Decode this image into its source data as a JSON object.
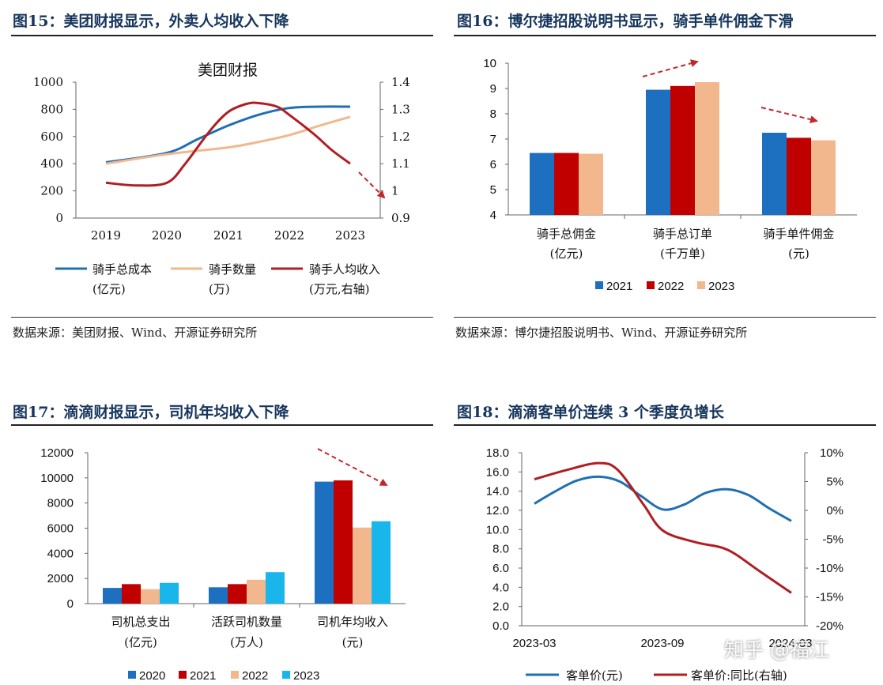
{
  "panels": [
    {
      "fig_title": "图15：美团财报显示，外卖人均收入下降",
      "source": "数据来源：美团财报、Wind、开源证券研究所"
    },
    {
      "fig_title": "图16：博尔捷招股说明书显示，骑手单件佣金下滑",
      "source": "数据来源：博尔捷招股说明书、Wind、开源证券研究所"
    },
    {
      "fig_title": "图17：滴滴财报显示，司机年均收入下降",
      "source": ""
    },
    {
      "fig_title": "图18：滴滴客单价连续 3 个季度负增长",
      "source": ""
    }
  ],
  "watermark": "知乎 @福江",
  "colors": {
    "title_blue": "#17365d",
    "blue": "#1f6fb4",
    "dark_red": "#b01e22",
    "peach": "#f3b78d",
    "bright_red": "#c00000",
    "cyan": "#19b6ec",
    "bar_blue": "#1d6fc0"
  },
  "chart_data": [
    {
      "type": "line",
      "title": "美团财报",
      "x": [
        "2019",
        "2020",
        "2021",
        "2022",
        "2023"
      ],
      "ylim": [
        0,
        1000
      ],
      "yticks": [
        0,
        200,
        400,
        600,
        800,
        1000
      ],
      "y2lim": [
        0.9,
        1.4
      ],
      "y2ticks": [
        "0.9",
        "1",
        "1.1",
        "1.2",
        "1.3",
        "1.4"
      ],
      "series": [
        {
          "name": "骑手总成本",
          "sub": "(亿元)",
          "axis": "left",
          "color": "#1f6fb4",
          "x": [
            2019,
            2020,
            2020.5,
            2021,
            2021.5,
            2022,
            2022.5,
            2023
          ],
          "values": [
            410,
            480,
            580,
            680,
            760,
            810,
            820,
            820
          ]
        },
        {
          "name": "骑手数量",
          "sub": "(万)",
          "axis": "left",
          "color": "#f3b78d",
          "x": [
            2019,
            2020,
            2021,
            2021.5,
            2022,
            2022.5,
            2023
          ],
          "values": [
            400,
            470,
            520,
            560,
            610,
            680,
            745
          ]
        },
        {
          "name": "骑手人均收入",
          "sub": "(万元,右轴)",
          "axis": "right",
          "color": "#b01e22",
          "x": [
            2019,
            2019.5,
            2020,
            2020.3,
            2020.7,
            2021,
            2021.3,
            2021.5,
            2021.8,
            2022,
            2022.4,
            2022.7,
            2023
          ],
          "values": [
            1.03,
            1.02,
            1.03,
            1.1,
            1.22,
            1.29,
            1.32,
            1.323,
            1.31,
            1.28,
            1.21,
            1.15,
            1.1
          ]
        }
      ]
    },
    {
      "type": "bar",
      "categories": [
        [
          "骑手总佣金",
          "(亿元)"
        ],
        [
          "骑手总订单",
          "(千万单)"
        ],
        [
          "骑手单件佣金",
          "(元)"
        ]
      ],
      "ylim": [
        4,
        10
      ],
      "yticks": [
        4,
        5,
        6,
        7,
        8,
        9,
        10
      ],
      "series": [
        {
          "name": "2021",
          "color": "#1d6fc0",
          "values": [
            6.45,
            8.95,
            7.25
          ]
        },
        {
          "name": "2022",
          "color": "#c00000",
          "values": [
            6.45,
            9.1,
            7.05
          ]
        },
        {
          "name": "2023",
          "color": "#f3b78d",
          "values": [
            6.42,
            9.25,
            6.95
          ]
        }
      ]
    },
    {
      "type": "bar",
      "categories": [
        [
          "司机总支出",
          "(亿元)"
        ],
        [
          "活跃司机数量",
          "(万人)"
        ],
        [
          "司机年均收入",
          "(元)"
        ]
      ],
      "ylim": [
        0,
        12000
      ],
      "yticks": [
        0,
        2000,
        4000,
        6000,
        8000,
        10000,
        12000
      ],
      "series": [
        {
          "name": "2020",
          "color": "#1d6fc0",
          "values": [
            1250,
            1300,
            9700
          ]
        },
        {
          "name": "2021",
          "color": "#c00000",
          "values": [
            1550,
            1550,
            9800
          ]
        },
        {
          "name": "2022",
          "color": "#f3b78d",
          "values": [
            1150,
            1900,
            6050
          ]
        },
        {
          "name": "2023",
          "color": "#19b6ec",
          "values": [
            1650,
            2500,
            6550
          ]
        }
      ]
    },
    {
      "type": "line",
      "x_labels": [
        "2023-03",
        "2023-09",
        "2024-03"
      ],
      "ylim": [
        0,
        18
      ],
      "yticks": [
        "0.0",
        "2.0",
        "4.0",
        "6.0",
        "8.0",
        "10.0",
        "12.0",
        "14.0",
        "16.0",
        "18.0"
      ],
      "y2lim": [
        -20,
        10
      ],
      "y2ticks": [
        "-20%",
        "-15%",
        "-10%",
        "-5%",
        "0%",
        "5%",
        "10%"
      ],
      "series": [
        {
          "name": "客单价(元)",
          "axis": "left",
          "color": "#1f6fb4",
          "x": [
            0,
            0.33,
            0.66,
            1.0,
            1.33,
            1.66,
            2.0,
            2.33,
            2.66,
            3.0,
            3.33,
            3.66,
            4.0
          ],
          "values": [
            12.7,
            14.0,
            15.1,
            15.5,
            15.0,
            13.5,
            12.1,
            12.6,
            13.8,
            14.2,
            13.6,
            12.2,
            10.9
          ]
        },
        {
          "name": "客单价:同比(右轴)",
          "axis": "right",
          "color": "#b01e22",
          "x": [
            0,
            0.5,
            1.0,
            1.3,
            1.7,
            2.0,
            2.5,
            3.0,
            3.5,
            4.0
          ],
          "values": [
            5.4,
            7.0,
            8.2,
            7.0,
            1.0,
            -3.5,
            -5.5,
            -6.8,
            -10.5,
            -14.3
          ]
        }
      ]
    }
  ]
}
